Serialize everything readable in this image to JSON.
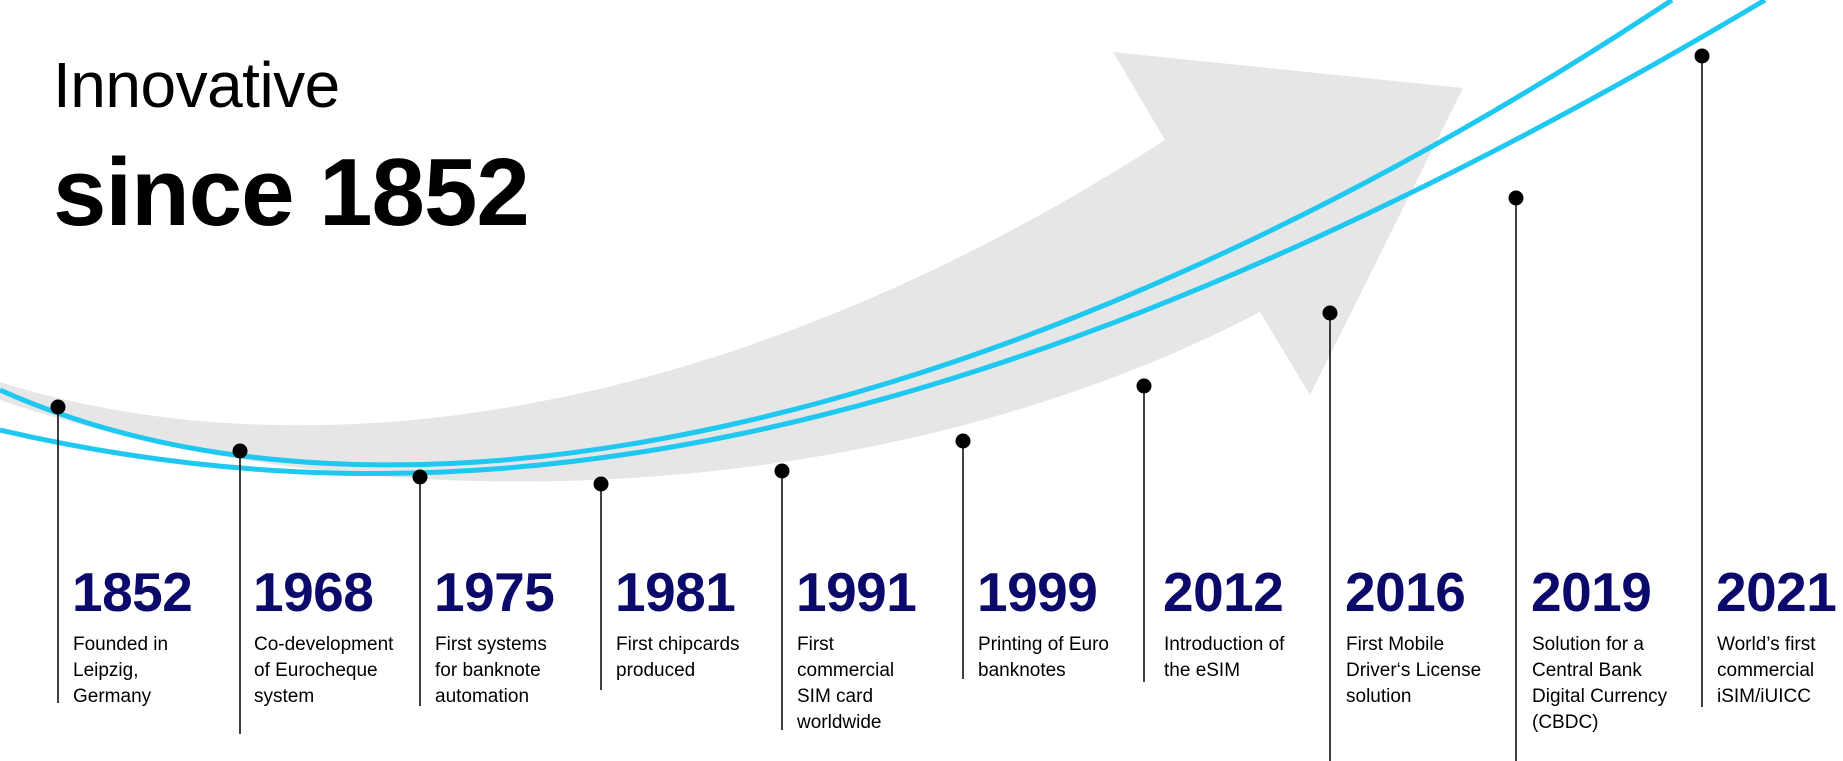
{
  "heading": {
    "line1": "Innovative",
    "line2": "since 1852"
  },
  "colors": {
    "curve": "#1ec8f0",
    "arrow": "#e6e6e6",
    "year": "#0b0a6b",
    "text": "#000000",
    "background": "#ffffff"
  },
  "milestones": [
    {
      "year": "1852",
      "description": "Founded in\nLeipzig,\nGermany"
    },
    {
      "year": "1968",
      "description": "Co-development\nof Eurocheque\nsystem"
    },
    {
      "year": "1975",
      "description": "First systems\nfor banknote\nautomation"
    },
    {
      "year": "1981",
      "description": "First chipcards\nproduced"
    },
    {
      "year": "1991",
      "description": "First\ncommercial\nSIM card\nworldwide"
    },
    {
      "year": "1999",
      "description": "Printing of Euro\nbanknotes"
    },
    {
      "year": "2012",
      "description": "Introduction of\nthe eSIM"
    },
    {
      "year": "2016",
      "description": "First Mobile\nDriver‘s License\nsolution"
    },
    {
      "year": "2019",
      "description": "Solution for a\nCentral Bank\nDigital Currency\n(CBDC)"
    },
    {
      "year": "2021",
      "description": "World’s first\ncommercial\niSIM/iUICC"
    }
  ]
}
